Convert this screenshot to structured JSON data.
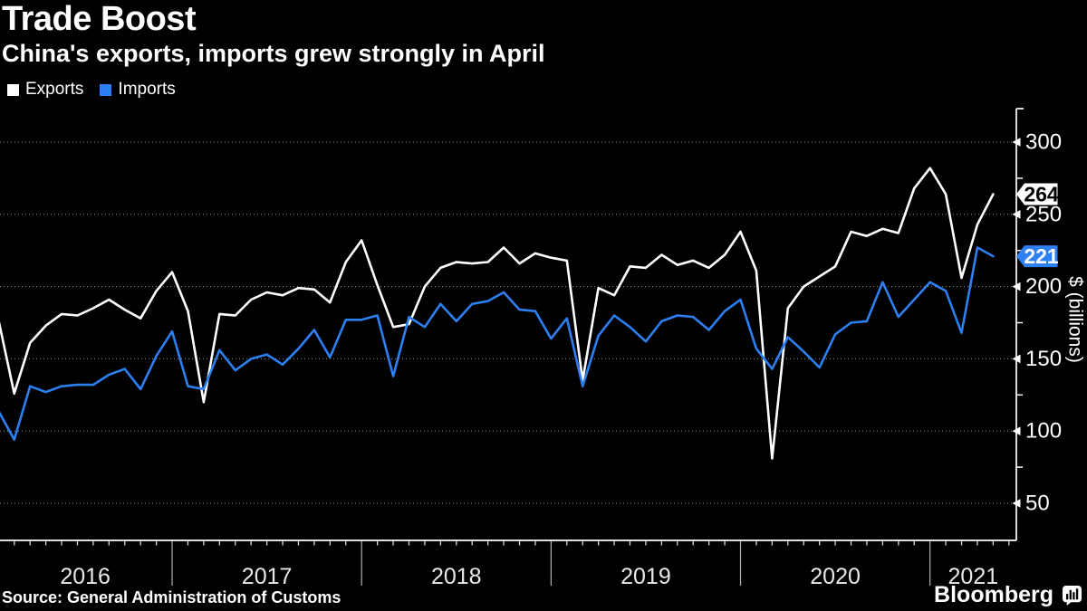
{
  "chart_data": {
    "type": "line",
    "title": "Trade Boost",
    "subtitle": "China's exports, imports grew strongly in April",
    "x_start": "2016-01",
    "x_end": "2021-04",
    "x_freq": "monthly",
    "x_year_labels": [
      "2016",
      "2017",
      "2018",
      "2019",
      "2020",
      "2021"
    ],
    "y_axis": {
      "label": "$ (billions)",
      "ticks": [
        50,
        100,
        150,
        200,
        250,
        300
      ],
      "minor_step": 25,
      "grid": "dotted",
      "side": "right"
    },
    "legend_position": "top-left",
    "series": [
      {
        "name": "Exports",
        "color": "#ffffff",
        "end_label": "264",
        "tag_text_color": "#000000",
        "values": [
          177,
          126,
          161,
          173,
          181,
          180,
          185,
          191,
          184,
          178,
          197,
          210,
          183,
          120,
          181,
          180,
          191,
          196,
          194,
          199,
          198,
          189,
          217,
          232,
          201,
          172,
          174,
          200,
          213,
          217,
          216,
          217,
          227,
          216,
          223,
          220,
          218,
          135,
          199,
          194,
          214,
          213,
          222,
          215,
          218,
          213,
          222,
          238,
          211,
          81,
          185,
          200,
          207,
          214,
          238,
          235,
          240,
          237,
          268,
          282,
          264,
          206,
          243,
          264
        ]
      },
      {
        "name": "Imports",
        "color": "#2d7ff2",
        "end_label": "221",
        "tag_text_color": "#ffffff",
        "values": [
          114,
          94,
          131,
          127,
          131,
          132,
          132,
          139,
          143,
          129,
          152,
          169,
          131,
          129,
          156,
          142,
          150,
          153,
          146,
          157,
          170,
          151,
          177,
          177,
          180,
          138,
          179,
          172,
          188,
          176,
          188,
          190,
          196,
          184,
          183,
          164,
          178,
          131,
          166,
          180,
          172,
          162,
          176,
          180,
          179,
          170,
          183,
          191,
          157,
          143,
          165,
          155,
          144,
          167,
          175,
          176,
          203,
          179,
          191,
          203,
          197,
          168,
          227,
          221
        ]
      }
    ],
    "colors": {
      "background": "#000000",
      "axis": "#ffffff",
      "grid": "#909090",
      "year_separator": "#b3b3b3",
      "year_label": "#e8e8e8"
    }
  },
  "footer": {
    "source": "Source: General Administration of Customs",
    "brand": "Bloomberg"
  }
}
